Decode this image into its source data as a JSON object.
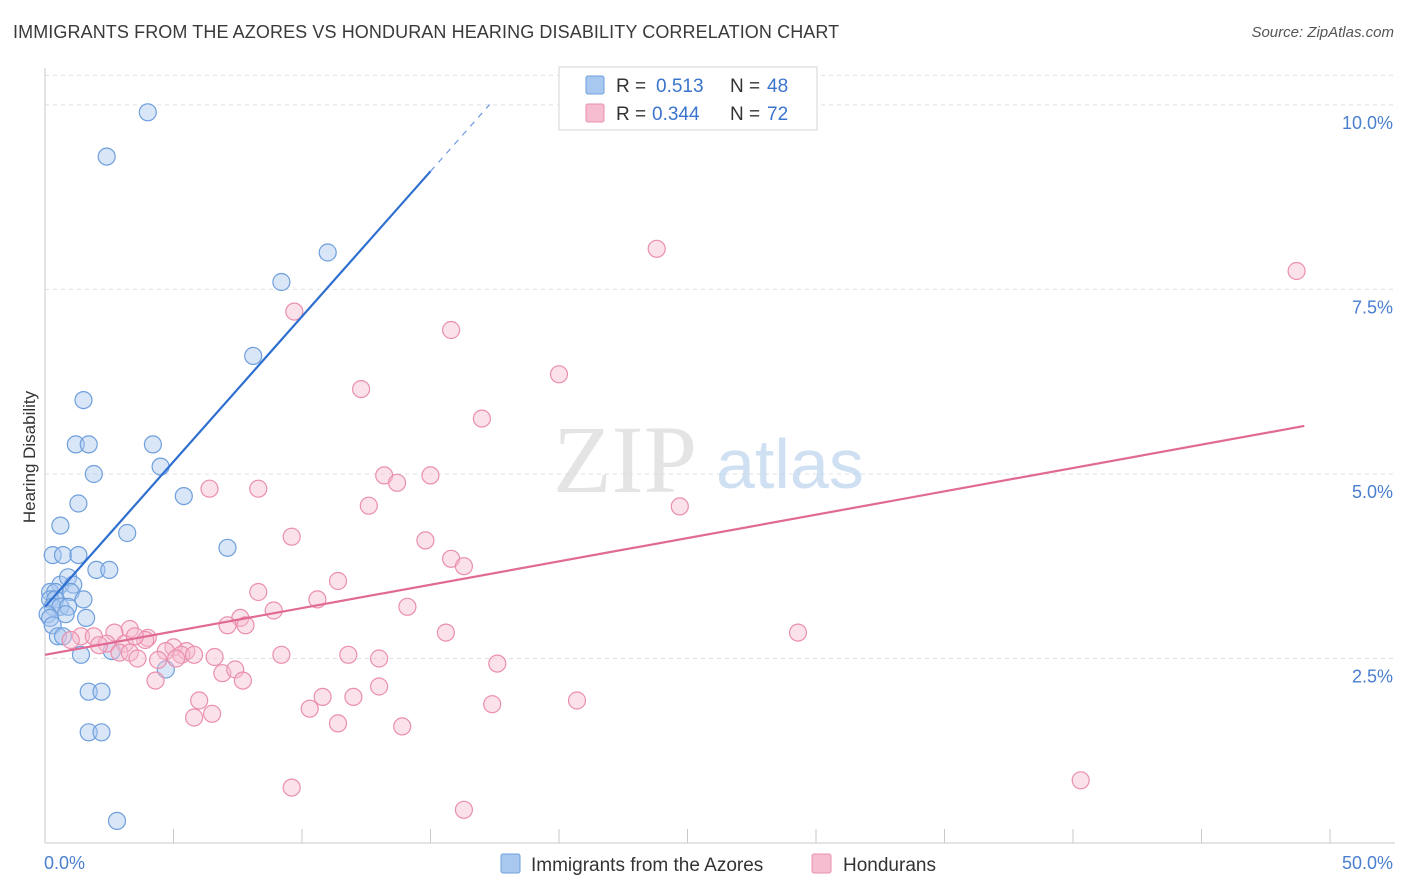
{
  "title": "IMMIGRANTS FROM THE AZORES VS HONDURAN HEARING DISABILITY CORRELATION CHART",
  "source": "Source: ZipAtlas.com",
  "watermark": {
    "zip": "ZIP",
    "atlas": "atlas"
  },
  "colors": {
    "azores_fill": "#a9c8ef",
    "azores_stroke": "#6f9fdc",
    "azores_line": "#2f6fcf",
    "honduran_fill": "#f6bcd0",
    "honduran_stroke": "#ea8fad",
    "honduran_line": "#e06a95",
    "tick_label": "#4a7fcf",
    "grid": "#dde0e6"
  },
  "legend_top": {
    "rows": [
      {
        "r_label": "R =",
        "r_value": "0.513",
        "n_label": "N =",
        "n_value": "48"
      },
      {
        "r_label": "R =",
        "r_value": "0.344",
        "n_label": "N =",
        "n_value": "72"
      }
    ]
  },
  "chart_data": {
    "type": "scatter",
    "title": "IMMIGRANTS FROM THE AZORES VS HONDURAN HEARING DISABILITY CORRELATION CHART",
    "xlabel": "",
    "ylabel": "Hearing Disability",
    "xlim": [
      0,
      50
    ],
    "ylim": [
      0,
      10.5
    ],
    "x_tick_labels": [
      "0.0%",
      "50.0%"
    ],
    "y_ticks": [
      2.5,
      5.0,
      7.5,
      10.0
    ],
    "y_tick_labels": [
      "2.5%",
      "5.0%",
      "7.5%",
      "10.0%"
    ],
    "grid": true,
    "legend_position": "bottom-center",
    "series": [
      {
        "name": "Immigrants from the Azores",
        "r": 0.513,
        "n": 48,
        "trend": {
          "x0": 0,
          "y0": 3.2,
          "x1": 15,
          "y1": 9.1,
          "dash_to_x": 17.3
        },
        "points": [
          [
            4.0,
            9.9
          ],
          [
            2.4,
            9.3
          ],
          [
            11.0,
            8.0
          ],
          [
            9.2,
            7.6
          ],
          [
            8.1,
            6.6
          ],
          [
            1.5,
            6.0
          ],
          [
            1.2,
            5.4
          ],
          [
            1.7,
            5.4
          ],
          [
            4.2,
            5.4
          ],
          [
            4.5,
            5.1
          ],
          [
            1.9,
            5.0
          ],
          [
            5.4,
            4.7
          ],
          [
            1.3,
            4.6
          ],
          [
            0.6,
            4.3
          ],
          [
            3.2,
            4.2
          ],
          [
            7.1,
            4.0
          ],
          [
            0.3,
            3.9
          ],
          [
            0.7,
            3.9
          ],
          [
            1.3,
            3.9
          ],
          [
            2.0,
            3.7
          ],
          [
            2.5,
            3.7
          ],
          [
            0.6,
            3.5
          ],
          [
            0.9,
            3.6
          ],
          [
            1.1,
            3.5
          ],
          [
            0.2,
            3.4
          ],
          [
            0.4,
            3.4
          ],
          [
            1.0,
            3.4
          ],
          [
            0.2,
            3.3
          ],
          [
            0.4,
            3.3
          ],
          [
            1.5,
            3.3
          ],
          [
            0.3,
            3.2
          ],
          [
            0.6,
            3.2
          ],
          [
            0.9,
            3.2
          ],
          [
            0.1,
            3.1
          ],
          [
            0.8,
            3.1
          ],
          [
            0.2,
            3.05
          ],
          [
            1.6,
            3.05
          ],
          [
            0.3,
            2.95
          ],
          [
            0.5,
            2.8
          ],
          [
            0.7,
            2.8
          ],
          [
            2.6,
            2.6
          ],
          [
            1.4,
            2.55
          ],
          [
            4.7,
            2.35
          ],
          [
            1.7,
            2.05
          ],
          [
            2.2,
            2.05
          ],
          [
            1.7,
            1.5
          ],
          [
            2.2,
            1.5
          ],
          [
            2.8,
            0.3
          ]
        ]
      },
      {
        "name": "Hondurans",
        "r": 0.344,
        "n": 72,
        "trend": {
          "x0": 0,
          "y0": 2.55,
          "x1": 49.0,
          "y1": 5.65
        },
        "points": [
          [
            23.8,
            8.05
          ],
          [
            48.7,
            7.75
          ],
          [
            9.7,
            7.2
          ],
          [
            15.8,
            6.95
          ],
          [
            20.0,
            6.35
          ],
          [
            12.3,
            6.15
          ],
          [
            17.0,
            5.75
          ],
          [
            13.2,
            4.98
          ],
          [
            15.0,
            4.98
          ],
          [
            13.7,
            4.88
          ],
          [
            6.4,
            4.8
          ],
          [
            8.3,
            4.8
          ],
          [
            12.6,
            4.57
          ],
          [
            24.7,
            4.56
          ],
          [
            9.6,
            4.15
          ],
          [
            14.8,
            4.1
          ],
          [
            15.8,
            3.85
          ],
          [
            16.3,
            3.75
          ],
          [
            11.4,
            3.55
          ],
          [
            8.3,
            3.4
          ],
          [
            10.6,
            3.3
          ],
          [
            14.1,
            3.2
          ],
          [
            8.9,
            3.15
          ],
          [
            7.6,
            3.05
          ],
          [
            7.1,
            2.95
          ],
          [
            7.8,
            2.95
          ],
          [
            3.3,
            2.9
          ],
          [
            2.7,
            2.85
          ],
          [
            29.3,
            2.85
          ],
          [
            15.6,
            2.85
          ],
          [
            1.4,
            2.8
          ],
          [
            1.9,
            2.8
          ],
          [
            4.0,
            2.78
          ],
          [
            1.0,
            2.75
          ],
          [
            3.9,
            2.75
          ],
          [
            2.4,
            2.7
          ],
          [
            3.1,
            2.7
          ],
          [
            5.0,
            2.65
          ],
          [
            5.5,
            2.6
          ],
          [
            4.7,
            2.6
          ],
          [
            2.9,
            2.58
          ],
          [
            3.3,
            2.58
          ],
          [
            5.3,
            2.55
          ],
          [
            5.8,
            2.55
          ],
          [
            9.2,
            2.55
          ],
          [
            11.8,
            2.55
          ],
          [
            3.6,
            2.5
          ],
          [
            5.1,
            2.5
          ],
          [
            13.0,
            2.5
          ],
          [
            4.4,
            2.48
          ],
          [
            17.6,
            2.43
          ],
          [
            6.9,
            2.3
          ],
          [
            7.4,
            2.35
          ],
          [
            4.3,
            2.2
          ],
          [
            7.7,
            2.2
          ],
          [
            13.0,
            2.12
          ],
          [
            10.8,
            1.98
          ],
          [
            12.0,
            1.98
          ],
          [
            20.7,
            1.93
          ],
          [
            6.0,
            1.93
          ],
          [
            17.4,
            1.88
          ],
          [
            10.3,
            1.82
          ],
          [
            6.5,
            1.75
          ],
          [
            5.8,
            1.7
          ],
          [
            11.4,
            1.62
          ],
          [
            13.9,
            1.58
          ],
          [
            9.6,
            0.75
          ],
          [
            16.3,
            0.45
          ],
          [
            40.3,
            0.85
          ],
          [
            3.5,
            2.8
          ],
          [
            2.1,
            2.68
          ],
          [
            6.6,
            2.52
          ]
        ]
      }
    ]
  }
}
